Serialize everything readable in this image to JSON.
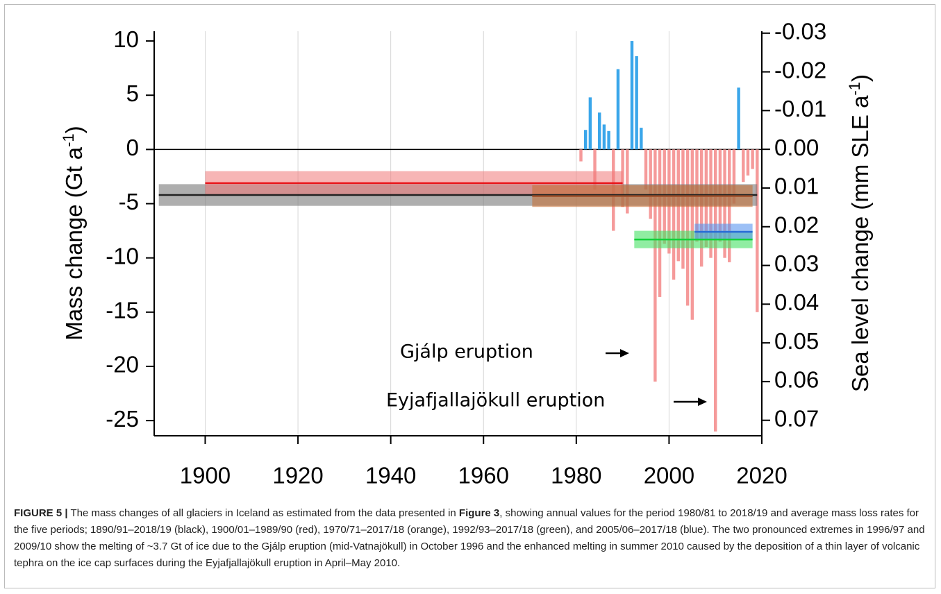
{
  "chart_data": {
    "type": "bar",
    "ylabel": {
      "text": "Mass change (Gt a",
      "sup": "-1",
      "end": ")"
    },
    "y2label": {
      "text": "Sea level change (mm SLE a",
      "sup": "-1",
      "end": ")"
    },
    "xlim": [
      1889,
      2020
    ],
    "xticks": [
      1900,
      1920,
      1940,
      1960,
      1980,
      2000,
      2020
    ],
    "ylim": [
      -26.4,
      10.9
    ],
    "yticks": [
      10,
      5,
      0,
      -5,
      -10,
      -15,
      -20,
      -25
    ],
    "y2lim": [
      0.074,
      -0.0305
    ],
    "y2ticks": [
      -0.03,
      -0.02,
      -0.01,
      {
        "value": 0,
        "label": "0.00"
      },
      0.01,
      0.02,
      0.03,
      0.04,
      0.05,
      0.06,
      0.07
    ],
    "grid": true,
    "x": [
      1981,
      1982,
      1983,
      1984,
      1985,
      1986,
      1987,
      1988,
      1989,
      1990,
      1991,
      1992,
      1993,
      1994,
      1995,
      1996,
      1997,
      1998,
      1999,
      2000,
      2001,
      2002,
      2003,
      2004,
      2005,
      2006,
      2007,
      2008,
      2009,
      2010,
      2011,
      2012,
      2013,
      2014,
      2015,
      2016,
      2017,
      2018,
      2019
    ],
    "values": [
      -1.1,
      1.8,
      4.8,
      -3.7,
      3.4,
      2.3,
      1.7,
      -7.5,
      7.4,
      -5.3,
      -5.9,
      10.0,
      8.6,
      2.0,
      -3.7,
      -6.4,
      -21.4,
      -13.6,
      -8.7,
      -9.6,
      -12.0,
      -10.3,
      -11.0,
      -14.4,
      -15.7,
      -8.5,
      -10.8,
      -9.0,
      -10.0,
      -26.0,
      -8.5,
      -10.0,
      -10.4,
      -5.0,
      5.7,
      -3.0,
      -2.4,
      -1.8,
      -15.0
    ],
    "positive_color": "#3aa6ea",
    "negative_color": "#f59a9a",
    "periods": [
      {
        "start": 1890,
        "end": 2019,
        "mean": -4.2,
        "uncertainty": 1.0,
        "band_color": "rgba(120,120,120,0.6)",
        "line_color": "#222222"
      },
      {
        "start": 1900,
        "end": 1990,
        "mean": -3.1,
        "uncertainty": 1.1,
        "band_color": "rgba(240,120,120,0.55)",
        "line_color": "#e8161b"
      },
      {
        "start": 1970.5,
        "end": 2018,
        "mean": -4.3,
        "uncertainty": 1.0,
        "band_color": "rgba(200,110,50,0.55)",
        "line_color": "#a0522d"
      },
      {
        "start": 1992.5,
        "end": 2018,
        "mean": -8.3,
        "uncertainty": 0.8,
        "band_color": "rgba(70,225,100,0.6)",
        "line_color": "#12d13a"
      },
      {
        "start": 2005.5,
        "end": 2018,
        "mean": -7.6,
        "uncertainty": 0.75,
        "band_color": "rgba(90,150,240,0.6)",
        "line_color": "#2a6dd6"
      }
    ],
    "annotations": [
      {
        "text": "Gjálp eruption"
      },
      {
        "text": "Eyjafjallajökull eruption"
      }
    ],
    "caption": [
      {
        "text": "FIGURE 5 |",
        "bold": true
      },
      {
        "text": " The mass changes of all glaciers in Iceland as estimated from the data presented in ",
        "bold": false
      },
      {
        "text": "Figure 3",
        "bold": true
      },
      {
        "text": ", showing annual values for the period 1980/81 to 2018/19 and average mass loss rates for the five periods; 1890/91–2018/19 (black), 1900/01–1989/90 (red), 1970/71–2017/18 (orange), 1992/93–2017/18 (green), and 2005/06–2017/18 (blue). The two pronounced extremes in 1996/97 and 2009/10 show the melting of ~3.7 Gt of ice due to the Gjálp eruption (mid-Vatnajökull) in October 1996 and the enhanced melting in summer 2010 caused by the deposition of a thin layer of volcanic tephra on the ice cap surfaces during the Eyjafjallajökull eruption in April–May 2010.",
        "bold": false
      }
    ]
  }
}
